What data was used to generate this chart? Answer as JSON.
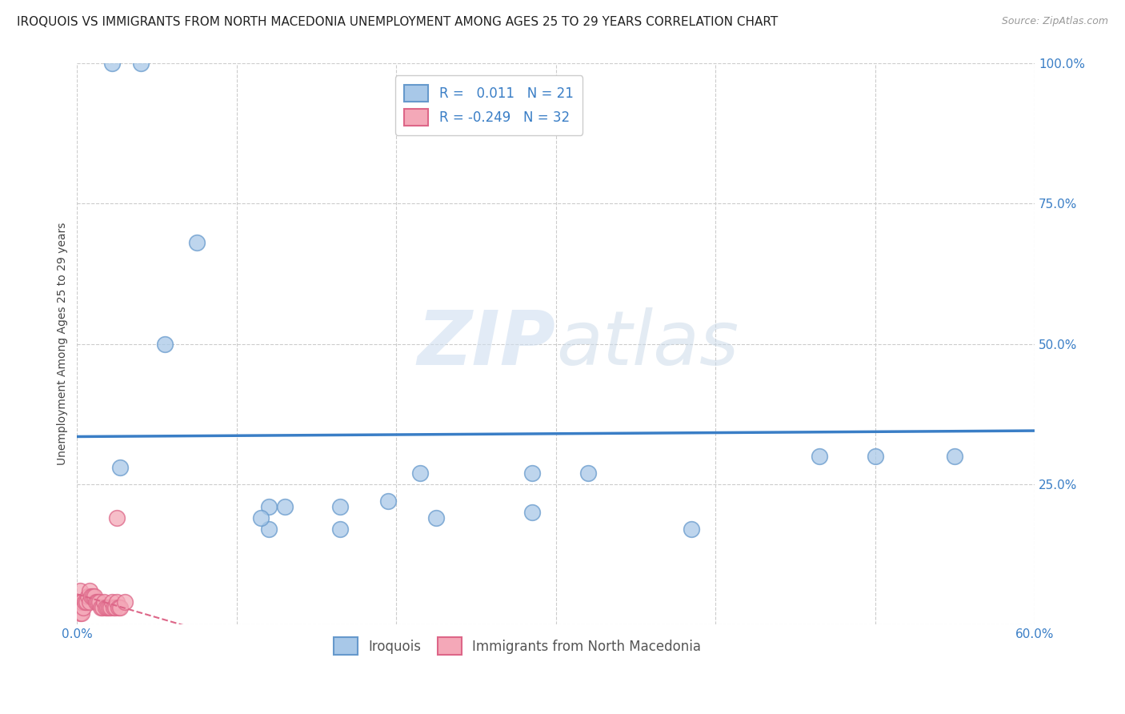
{
  "title": "IROQUOIS VS IMMIGRANTS FROM NORTH MACEDONIA UNEMPLOYMENT AMONG AGES 25 TO 29 YEARS CORRELATION CHART",
  "source": "Source: ZipAtlas.com",
  "ylabel": "Unemployment Among Ages 25 to 29 years",
  "xlim": [
    0.0,
    0.6
  ],
  "ylim": [
    0.0,
    1.0
  ],
  "xticks": [
    0.0,
    0.1,
    0.2,
    0.3,
    0.4,
    0.5,
    0.6
  ],
  "xticklabels": [
    "0.0%",
    "",
    "",
    "",
    "",
    "",
    "60.0%"
  ],
  "yticks": [
    0.0,
    0.25,
    0.5,
    0.75,
    1.0
  ],
  "yticklabels": [
    "",
    "25.0%",
    "50.0%",
    "75.0%",
    "100.0%"
  ],
  "iroquois_color": "#A8C8E8",
  "iroquois_edge": "#6699CC",
  "macedonia_color": "#F4A8B8",
  "macedonia_edge": "#DD6688",
  "iroquois_R": 0.011,
  "iroquois_N": 21,
  "macedonia_R": -0.249,
  "macedonia_N": 32,
  "iroquois_x": [
    0.022,
    0.04,
    0.027,
    0.075,
    0.055,
    0.12,
    0.12,
    0.13,
    0.115,
    0.165,
    0.165,
    0.215,
    0.32,
    0.465,
    0.5,
    0.55,
    0.195,
    0.285,
    0.285,
    0.385,
    0.225
  ],
  "iroquois_y": [
    1.0,
    1.0,
    0.28,
    0.68,
    0.5,
    0.21,
    0.17,
    0.21,
    0.19,
    0.17,
    0.21,
    0.27,
    0.27,
    0.3,
    0.3,
    0.3,
    0.22,
    0.27,
    0.2,
    0.17,
    0.19
  ],
  "macedonia_x": [
    0.002,
    0.002,
    0.002,
    0.003,
    0.003,
    0.004,
    0.005,
    0.006,
    0.007,
    0.008,
    0.008,
    0.009,
    0.01,
    0.011,
    0.012,
    0.013,
    0.014,
    0.015,
    0.016,
    0.017,
    0.018,
    0.019,
    0.02,
    0.021,
    0.022,
    0.023,
    0.024,
    0.025,
    0.025,
    0.026,
    0.027,
    0.03
  ],
  "macedonia_y": [
    0.02,
    0.04,
    0.06,
    0.02,
    0.04,
    0.03,
    0.04,
    0.04,
    0.05,
    0.04,
    0.06,
    0.05,
    0.05,
    0.05,
    0.04,
    0.04,
    0.04,
    0.03,
    0.03,
    0.04,
    0.03,
    0.03,
    0.03,
    0.03,
    0.04,
    0.03,
    0.03,
    0.04,
    0.19,
    0.03,
    0.03,
    0.04
  ],
  "watermark_zip": "ZIP",
  "watermark_atlas": "atlas",
  "iroquois_line_color": "#3A7EC6",
  "macedonia_line_color": "#DD6688",
  "grid_color": "#CCCCCC",
  "title_fontsize": 11,
  "axis_label_fontsize": 10,
  "tick_fontsize": 11,
  "background_color": "#FFFFFF"
}
